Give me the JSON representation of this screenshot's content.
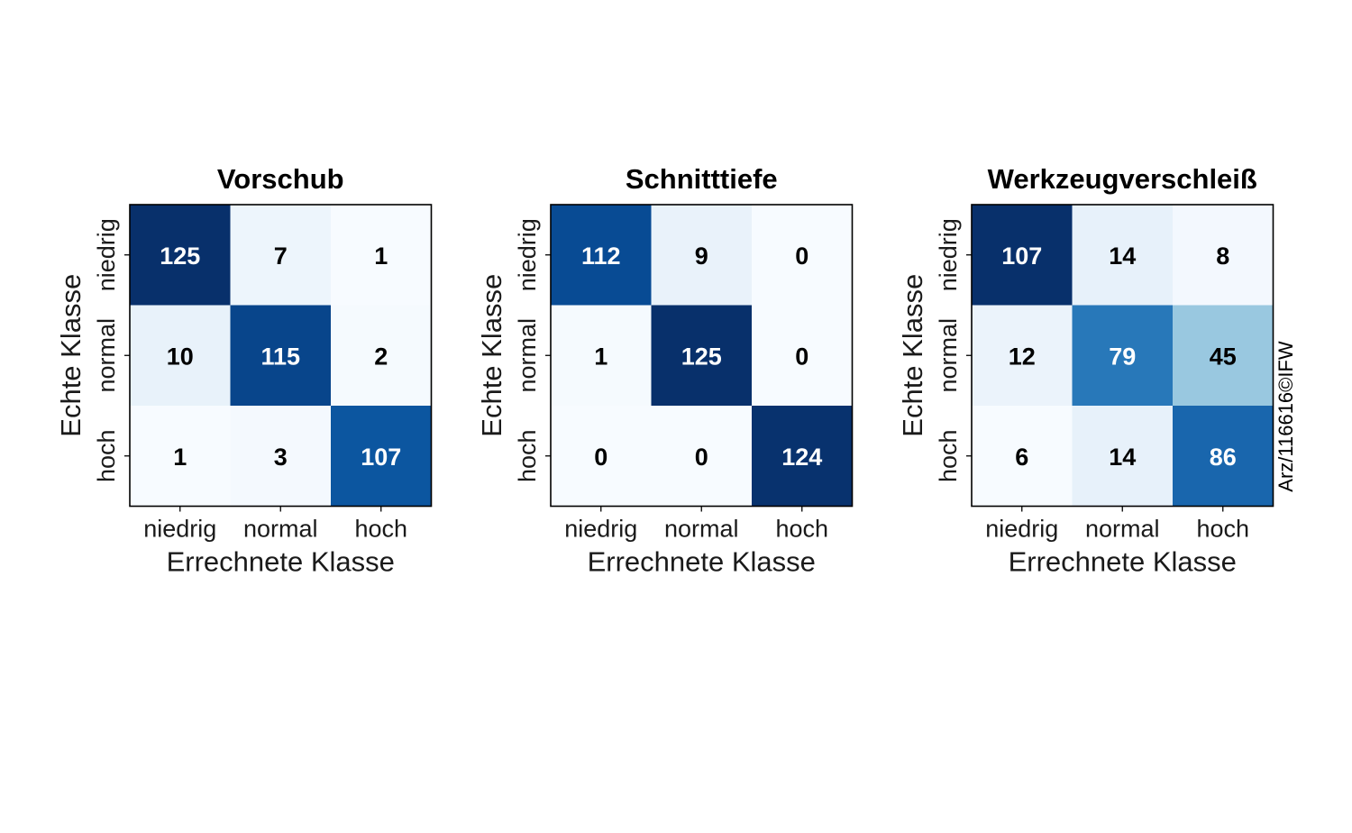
{
  "chart_data": [
    {
      "type": "heatmap",
      "title": "Vorschub",
      "xlabel": "Errechnete Klasse",
      "ylabel": "Echte Klasse",
      "x_categories": [
        "niedrig",
        "normal",
        "hoch"
      ],
      "y_categories": [
        "niedrig",
        "normal",
        "hoch"
      ],
      "values": [
        [
          125,
          7,
          1
        ],
        [
          10,
          115,
          2
        ],
        [
          1,
          3,
          107
        ]
      ],
      "colormap": "Blues"
    },
    {
      "type": "heatmap",
      "title": "Schnitttiefe",
      "xlabel": "Errechnete Klasse",
      "ylabel": "Echte Klasse",
      "x_categories": [
        "niedrig",
        "normal",
        "hoch"
      ],
      "y_categories": [
        "niedrig",
        "normal",
        "hoch"
      ],
      "values": [
        [
          112,
          9,
          0
        ],
        [
          1,
          125,
          0
        ],
        [
          0,
          0,
          124
        ]
      ],
      "colormap": "Blues"
    },
    {
      "type": "heatmap",
      "title": "Werkzeugverschleiß",
      "xlabel": "Errechnete Klasse",
      "ylabel": "Echte Klasse",
      "x_categories": [
        "niedrig",
        "normal",
        "hoch"
      ],
      "y_categories": [
        "niedrig",
        "normal",
        "hoch"
      ],
      "values": [
        [
          107,
          14,
          8
        ],
        [
          12,
          79,
          45
        ],
        [
          6,
          14,
          86
        ]
      ],
      "colormap": "Blues"
    }
  ],
  "credit": "Arz/116616©IFW",
  "colors": {
    "blues_scale": [
      "#f7fbff",
      "#deebf7",
      "#c6dbef",
      "#9ecae1",
      "#6baed6",
      "#4292c6",
      "#2171b5",
      "#08519c",
      "#08306b"
    ],
    "dark_text": "#000000",
    "light_text": "#ffffff"
  }
}
